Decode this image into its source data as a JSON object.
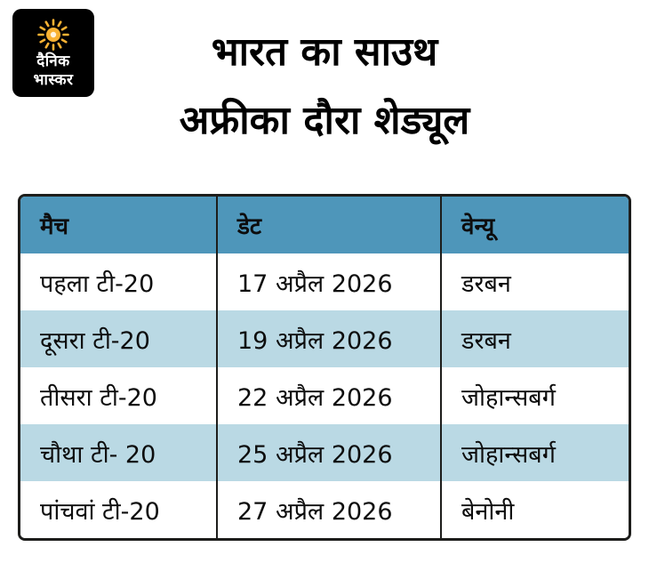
{
  "logo": {
    "text_line1": "दैनिक",
    "text_line2": "भास्कर"
  },
  "title": {
    "line1": "भारत का साउथ",
    "line2": "अफ्रीका दौरा शेड्यूल"
  },
  "chart_data": {
    "type": "table",
    "title": "भारत का साउथ अफ्रीका दौरा शेड्यूल",
    "columns": [
      "मैच",
      "डेट",
      "वेन्यू"
    ],
    "rows": [
      [
        "पहला टी-20",
        "17 अप्रैल 2026",
        "डरबन"
      ],
      [
        "दूसरा टी-20",
        "19 अप्रैल 2026",
        "डरबन"
      ],
      [
        "तीसरा टी-20",
        "22 अप्रैल 2026",
        "जोहान्सबर्ग"
      ],
      [
        "चौथा टी- 20",
        "25 अप्रैल 2026",
        "जोहान्सबर्ग"
      ],
      [
        "पांचवां टी-20",
        "27 अप्रैल 2026",
        "बेनोनी"
      ]
    ]
  },
  "colors": {
    "header_bg": "#4e96ba",
    "alt_row_bg": "#bad9e4",
    "row_bg": "#ffffff",
    "table_border": "#1d1d1b",
    "logo_bg": "#000000",
    "sun": "#f9b233"
  }
}
